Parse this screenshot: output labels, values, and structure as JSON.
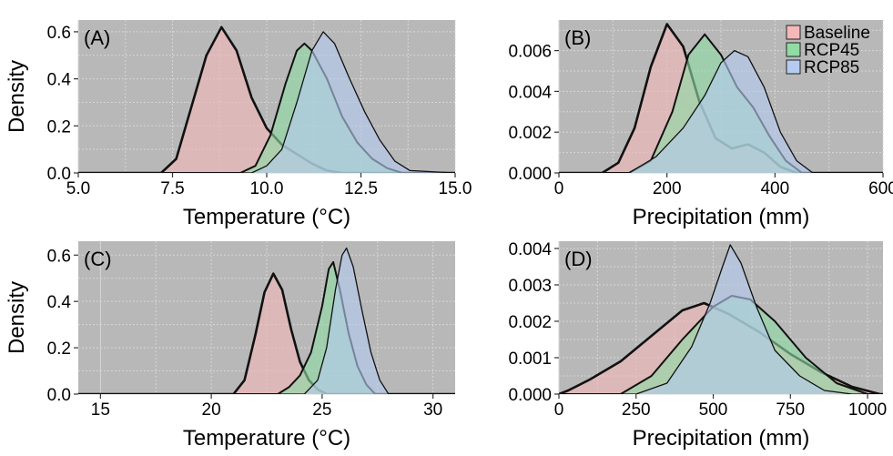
{
  "figure": {
    "panel_bg": "#b8b8b8",
    "grid_color": "#d6d6d6",
    "legend": {
      "placement": "top-right of panel B",
      "items": [
        {
          "label": "Baseline",
          "color": "#f4b8b8"
        },
        {
          "label": "RCP45",
          "color": "#8fdca5"
        },
        {
          "label": "RCP85",
          "color": "#b5ccf0"
        }
      ]
    }
  },
  "chart_data": [
    {
      "type": "area",
      "panel_label": "(A)",
      "xlabel": "Temperature (°C)",
      "ylabel": "Density",
      "xlim": [
        5.0,
        15.0
      ],
      "ylim": [
        0.0,
        0.65
      ],
      "xticks": [
        "5.0",
        "7.5",
        "10.0",
        "12.5",
        "15.0"
      ],
      "yticks": [
        "0.0",
        "0.2",
        "0.4",
        "0.6"
      ],
      "grid": true,
      "series": [
        {
          "name": "Baseline",
          "color": "#f4b8b8",
          "x": [
            5.0,
            7.2,
            7.6,
            8.0,
            8.4,
            8.8,
            9.2,
            9.6,
            10.0,
            10.4,
            10.8,
            11.2,
            11.6,
            12.0,
            15.0
          ],
          "y": [
            0,
            0,
            0.06,
            0.28,
            0.5,
            0.62,
            0.52,
            0.32,
            0.19,
            0.12,
            0.08,
            0.04,
            0.01,
            0,
            0
          ]
        },
        {
          "name": "RCP45",
          "color": "#8fdca5",
          "x": [
            5.0,
            9.3,
            9.7,
            10.1,
            10.5,
            10.8,
            11.0,
            11.2,
            11.6,
            12.0,
            12.4,
            12.8,
            13.2,
            13.6,
            15.0
          ],
          "y": [
            0,
            0,
            0.03,
            0.16,
            0.38,
            0.52,
            0.55,
            0.52,
            0.4,
            0.24,
            0.13,
            0.06,
            0.02,
            0,
            0
          ]
        },
        {
          "name": "RCP85",
          "color": "#b5ccf0",
          "x": [
            5.0,
            9.6,
            10.0,
            10.4,
            10.8,
            11.2,
            11.5,
            11.8,
            12.2,
            12.6,
            13.0,
            13.4,
            13.8,
            15.0
          ],
          "y": [
            0,
            0,
            0.03,
            0.1,
            0.3,
            0.52,
            0.6,
            0.55,
            0.4,
            0.26,
            0.14,
            0.05,
            0.01,
            0
          ]
        }
      ]
    },
    {
      "type": "area",
      "panel_label": "(B)",
      "xlabel": "Precipitation (mm)",
      "ylabel": "",
      "xlim": [
        0,
        600
      ],
      "ylim": [
        0,
        0.0075
      ],
      "xticks": [
        "0",
        "200",
        "400",
        "600"
      ],
      "yticks": [
        "0.000",
        "0.002",
        "0.004",
        "0.006"
      ],
      "grid": true,
      "series": [
        {
          "name": "Baseline",
          "color": "#f4b8b8",
          "x": [
            0,
            80,
            110,
            140,
            170,
            200,
            230,
            260,
            290,
            320,
            350,
            380,
            410,
            440,
            600
          ],
          "y": [
            0,
            0,
            0.0005,
            0.0022,
            0.0052,
            0.0073,
            0.0062,
            0.0035,
            0.0017,
            0.0012,
            0.0014,
            0.001,
            0.0003,
            0,
            0
          ]
        },
        {
          "name": "RCP45",
          "color": "#8fdca5",
          "x": [
            0,
            130,
            170,
            210,
            240,
            270,
            300,
            330,
            360,
            390,
            420,
            450,
            600
          ],
          "y": [
            0,
            0,
            0.0006,
            0.003,
            0.0058,
            0.0068,
            0.0058,
            0.0042,
            0.0032,
            0.0018,
            0.0006,
            0,
            0
          ]
        },
        {
          "name": "RCP85",
          "color": "#b5ccf0",
          "x": [
            0,
            130,
            180,
            230,
            270,
            300,
            325,
            350,
            380,
            410,
            440,
            470,
            600
          ],
          "y": [
            0,
            0,
            0.0008,
            0.0022,
            0.0038,
            0.0054,
            0.006,
            0.0057,
            0.0042,
            0.002,
            0.0006,
            0,
            0
          ]
        }
      ]
    },
    {
      "type": "area",
      "panel_label": "(C)",
      "xlabel": "Temperature (°C)",
      "ylabel": "Density",
      "xlim": [
        14,
        31
      ],
      "ylim": [
        0.0,
        0.66
      ],
      "xticks": [
        "15",
        "20",
        "25",
        "30"
      ],
      "yticks": [
        "0.0",
        "0.2",
        "0.4",
        "0.6"
      ],
      "grid": true,
      "series": [
        {
          "name": "Baseline",
          "color": "#f4b8b8",
          "x": [
            14,
            21.0,
            21.5,
            22.0,
            22.4,
            22.8,
            23.2,
            23.6,
            24.0,
            24.4,
            24.8,
            25.2,
            31
          ],
          "y": [
            0,
            0,
            0.06,
            0.26,
            0.44,
            0.52,
            0.45,
            0.28,
            0.14,
            0.06,
            0.02,
            0,
            0
          ]
        },
        {
          "name": "RCP45",
          "color": "#8fdca5",
          "x": [
            14,
            23.0,
            23.5,
            24.0,
            24.5,
            25.0,
            25.3,
            25.5,
            25.8,
            26.2,
            26.6,
            27.0,
            27.4,
            31
          ],
          "y": [
            0,
            0,
            0.03,
            0.08,
            0.18,
            0.38,
            0.54,
            0.57,
            0.45,
            0.26,
            0.12,
            0.04,
            0,
            0
          ]
        },
        {
          "name": "RCP85",
          "color": "#b5ccf0",
          "x": [
            14,
            24.2,
            24.8,
            25.2,
            25.6,
            25.9,
            26.1,
            26.4,
            26.8,
            27.2,
            27.6,
            28.0,
            31
          ],
          "y": [
            0,
            0,
            0.06,
            0.2,
            0.45,
            0.6,
            0.63,
            0.55,
            0.36,
            0.18,
            0.06,
            0,
            0
          ]
        }
      ]
    },
    {
      "type": "area",
      "panel_label": "(D)",
      "xlabel": "Precipitation (mm)",
      "ylabel": "",
      "xlim": [
        0,
        1050
      ],
      "ylim": [
        0,
        0.0042
      ],
      "xticks": [
        "0",
        "250",
        "500",
        "750",
        "1000"
      ],
      "yticks": [
        "0.000",
        "0.001",
        "0.002",
        "0.003",
        "0.004"
      ],
      "grid": true,
      "series": [
        {
          "name": "Baseline",
          "color": "#f4b8b8",
          "x": [
            0,
            30,
            100,
            200,
            300,
            400,
            470,
            550,
            650,
            750,
            850,
            950,
            1040,
            1050
          ],
          "y": [
            0,
            0.0001,
            0.0004,
            0.0009,
            0.0016,
            0.0023,
            0.0025,
            0.0022,
            0.0017,
            0.0011,
            0.0006,
            0.0002,
            0,
            0
          ]
        },
        {
          "name": "RCP45",
          "color": "#8fdca5",
          "x": [
            0,
            200,
            300,
            400,
            500,
            560,
            620,
            700,
            800,
            900,
            1000,
            1050
          ],
          "y": [
            0,
            0,
            0.0005,
            0.0015,
            0.0024,
            0.0027,
            0.0026,
            0.002,
            0.001,
            0.0003,
            0,
            0
          ]
        },
        {
          "name": "RCP85",
          "color": "#b5ccf0",
          "x": [
            0,
            250,
            350,
            430,
            490,
            530,
            555,
            590,
            640,
            700,
            780,
            860,
            950,
            1050
          ],
          "y": [
            0,
            0,
            0.0003,
            0.0013,
            0.0025,
            0.0035,
            0.0041,
            0.0036,
            0.0024,
            0.0012,
            0.0005,
            0.0001,
            0,
            0
          ]
        }
      ]
    }
  ]
}
